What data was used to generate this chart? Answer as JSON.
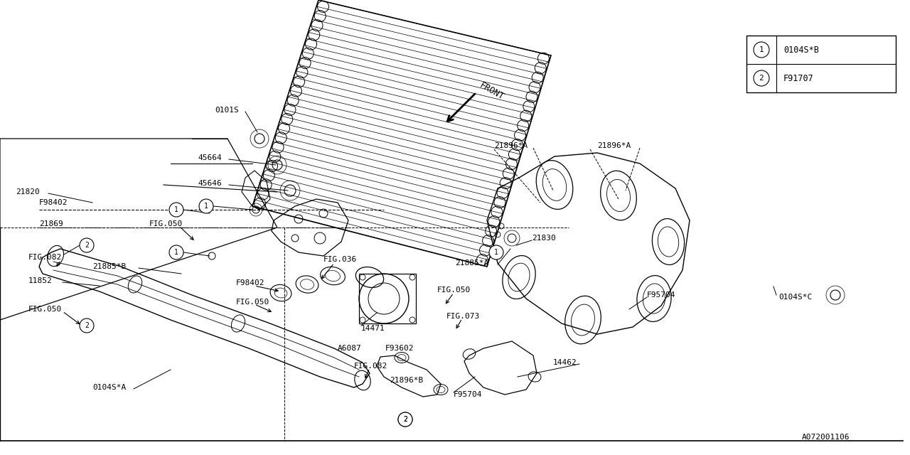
{
  "bg_color": "#ffffff",
  "line_color": "#000000",
  "diagram_id": "A072001106",
  "legend_items": [
    {
      "symbol": "1",
      "text": "0104S*B"
    },
    {
      "symbol": "2",
      "text": "F91707"
    }
  ]
}
